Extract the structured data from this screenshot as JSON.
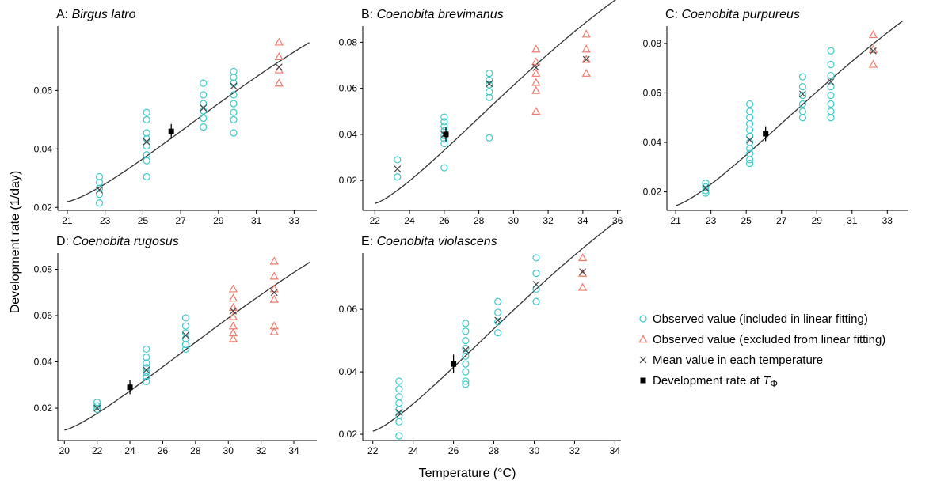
{
  "figure": {
    "ylabel": "Development rate (1/day)",
    "xlabel": "Temperature (°C)"
  },
  "legend": {
    "items": [
      {
        "label": "Observed value (included in linear fitting)",
        "marker": "circle-open",
        "color": "#3ec9c9"
      },
      {
        "label": "Observed value (excluded from linear fitting)",
        "marker": "triangle-open",
        "color": "#f07a6a"
      },
      {
        "label": "Mean value in each temperature",
        "marker": "cross",
        "color": "#444444"
      },
      {
        "label": "Development rate at ",
        "label_sym": "T",
        "label_sub": "Φ",
        "marker": "square",
        "color": "#000000"
      }
    ]
  },
  "colors": {
    "included": "#3ec9c9",
    "excluded": "#f07a6a",
    "mean": "#444444",
    "curve": "#333333",
    "trate": "#000000"
  },
  "chart_data": [
    {
      "type": "scatter",
      "panel_letter": "A: ",
      "title": "Birgus latro",
      "xlim": [
        20.5,
        34.2
      ],
      "ylim": [
        0.019,
        0.082
      ],
      "xticks": [
        21,
        23,
        25,
        27,
        29,
        31,
        33
      ],
      "yticks": [
        0.02,
        0.04,
        0.06
      ],
      "included": [
        [
          22.7,
          0.0305
        ],
        [
          22.7,
          0.0285
        ],
        [
          22.7,
          0.0265
        ],
        [
          22.7,
          0.0245
        ],
        [
          22.7,
          0.0215
        ],
        [
          25.2,
          0.0525
        ],
        [
          25.2,
          0.05
        ],
        [
          25.2,
          0.0455
        ],
        [
          25.2,
          0.0435
        ],
        [
          25.2,
          0.041
        ],
        [
          25.2,
          0.038
        ],
        [
          25.2,
          0.036
        ],
        [
          25.2,
          0.0305
        ],
        [
          28.2,
          0.0625
        ],
        [
          28.2,
          0.0585
        ],
        [
          28.2,
          0.0555
        ],
        [
          28.2,
          0.053
        ],
        [
          28.2,
          0.0505
        ],
        [
          28.2,
          0.0475
        ],
        [
          29.8,
          0.0665
        ],
        [
          29.8,
          0.0645
        ],
        [
          29.8,
          0.0625
        ],
        [
          29.8,
          0.0585
        ],
        [
          29.8,
          0.0555
        ],
        [
          29.8,
          0.0525
        ],
        [
          29.8,
          0.05
        ],
        [
          29.8,
          0.0455
        ]
      ],
      "excluded": [
        [
          32.2,
          0.0765
        ],
        [
          32.2,
          0.0715
        ],
        [
          32.2,
          0.067
        ],
        [
          32.2,
          0.0625
        ]
      ],
      "means": [
        [
          22.7,
          0.026
        ],
        [
          25.2,
          0.0425
        ],
        [
          28.2,
          0.054
        ],
        [
          29.8,
          0.0615
        ],
        [
          32.2,
          0.068
        ]
      ],
      "trate": {
        "x": 26.5,
        "y": 0.046,
        "err": 0.0025
      },
      "curve": {
        "T1": 21.0,
        "T2": 32.0,
        "r1": 0.022,
        "r2": 0.069,
        "a": 0.35,
        "xmin": 21.0,
        "xmax": 33.8
      }
    },
    {
      "type": "scatter",
      "panel_letter": "B: ",
      "title": "Coenobita brevimanus",
      "xlim": [
        21.3,
        36.2
      ],
      "ylim": [
        0.007,
        0.087
      ],
      "xticks": [
        22,
        24,
        26,
        28,
        30,
        32,
        34,
        36
      ],
      "yticks": [
        0.02,
        0.04,
        0.06,
        0.08
      ],
      "included": [
        [
          23.3,
          0.029
        ],
        [
          23.3,
          0.0215
        ],
        [
          26.0,
          0.0475
        ],
        [
          26.0,
          0.0455
        ],
        [
          26.0,
          0.0435
        ],
        [
          26.0,
          0.0415
        ],
        [
          26.0,
          0.0395
        ],
        [
          26.0,
          0.038
        ],
        [
          26.0,
          0.036
        ],
        [
          26.0,
          0.0255
        ],
        [
          28.6,
          0.0665
        ],
        [
          28.6,
          0.0635
        ],
        [
          28.6,
          0.0615
        ],
        [
          28.6,
          0.0585
        ],
        [
          28.6,
          0.056
        ],
        [
          28.6,
          0.0385
        ]
      ],
      "excluded": [
        [
          31.3,
          0.077
        ],
        [
          31.3,
          0.0715
        ],
        [
          31.3,
          0.0665
        ],
        [
          31.3,
          0.0625
        ],
        [
          31.3,
          0.059
        ],
        [
          31.3,
          0.05
        ],
        [
          34.2,
          0.0835
        ],
        [
          34.2,
          0.077
        ],
        [
          34.2,
          0.0725
        ],
        [
          34.2,
          0.0665
        ]
      ],
      "means": [
        [
          23.3,
          0.025
        ],
        [
          26.0,
          0.04
        ],
        [
          28.6,
          0.062
        ],
        [
          31.3,
          0.069
        ],
        [
          34.2,
          0.0725
        ]
      ],
      "trate": {
        "x": 26.1,
        "y": 0.04,
        "err": 0.003
      },
      "curve": {
        "T1": 22.0,
        "T2": 32.4,
        "r1": 0.01,
        "r2": 0.0775,
        "a": 0.3,
        "xmin": 22.0,
        "xmax": 35.9
      }
    },
    {
      "type": "scatter",
      "panel_letter": "C: ",
      "title": "Coenobita purpureus",
      "xlim": [
        20.5,
        34.2
      ],
      "ylim": [
        0.0125,
        0.087
      ],
      "xticks": [
        21,
        23,
        25,
        27,
        29,
        31,
        33
      ],
      "yticks": [
        0.02,
        0.04,
        0.06,
        0.08
      ],
      "included": [
        [
          22.7,
          0.0235
        ],
        [
          22.7,
          0.022
        ],
        [
          22.7,
          0.0205
        ],
        [
          22.7,
          0.0195
        ],
        [
          25.2,
          0.0555
        ],
        [
          25.2,
          0.0525
        ],
        [
          25.2,
          0.05
        ],
        [
          25.2,
          0.0475
        ],
        [
          25.2,
          0.045
        ],
        [
          25.2,
          0.0425
        ],
        [
          25.2,
          0.04
        ],
        [
          25.2,
          0.0375
        ],
        [
          25.2,
          0.0355
        ],
        [
          25.2,
          0.033
        ],
        [
          25.2,
          0.0315
        ],
        [
          28.2,
          0.0665
        ],
        [
          28.2,
          0.0625
        ],
        [
          28.2,
          0.059
        ],
        [
          28.2,
          0.0555
        ],
        [
          28.2,
          0.0525
        ],
        [
          28.2,
          0.05
        ],
        [
          29.8,
          0.077
        ],
        [
          29.8,
          0.0715
        ],
        [
          29.8,
          0.067
        ],
        [
          29.8,
          0.0625
        ],
        [
          29.8,
          0.059
        ],
        [
          29.8,
          0.0555
        ],
        [
          29.8,
          0.0525
        ],
        [
          29.8,
          0.05
        ]
      ],
      "excluded": [
        [
          32.2,
          0.0835
        ],
        [
          32.2,
          0.0775
        ],
        [
          32.2,
          0.0715
        ]
      ],
      "means": [
        [
          22.7,
          0.0215
        ],
        [
          25.2,
          0.041
        ],
        [
          28.2,
          0.0595
        ],
        [
          29.8,
          0.0645
        ],
        [
          32.2,
          0.077
        ]
      ],
      "trate": {
        "x": 26.1,
        "y": 0.0435,
        "err": 0.003
      },
      "curve": {
        "T1": 21.0,
        "T2": 31.8,
        "r1": 0.0145,
        "r2": 0.0775,
        "a": 0.32,
        "xmin": 21.0,
        "xmax": 33.9
      }
    },
    {
      "type": "scatter",
      "panel_letter": "D: ",
      "title": "Coenobita rugosus",
      "xlim": [
        19.6,
        35.4
      ],
      "ylim": [
        0.006,
        0.087
      ],
      "xticks": [
        20,
        22,
        24,
        26,
        28,
        30,
        32,
        34
      ],
      "yticks": [
        0.02,
        0.04,
        0.06,
        0.08
      ],
      "included": [
        [
          22.0,
          0.0225
        ],
        [
          22.0,
          0.021
        ],
        [
          22.0,
          0.0195
        ],
        [
          25.0,
          0.0455
        ],
        [
          25.0,
          0.042
        ],
        [
          25.0,
          0.0395
        ],
        [
          25.0,
          0.0375
        ],
        [
          25.0,
          0.0355
        ],
        [
          25.0,
          0.0335
        ],
        [
          25.0,
          0.0315
        ],
        [
          27.4,
          0.059
        ],
        [
          27.4,
          0.0555
        ],
        [
          27.4,
          0.0525
        ],
        [
          27.4,
          0.05
        ],
        [
          27.4,
          0.0475
        ],
        [
          27.4,
          0.0455
        ]
      ],
      "excluded": [
        [
          30.3,
          0.0715
        ],
        [
          30.3,
          0.0675
        ],
        [
          30.3,
          0.0635
        ],
        [
          30.3,
          0.0595
        ],
        [
          30.3,
          0.0555
        ],
        [
          30.3,
          0.0525
        ],
        [
          30.3,
          0.05
        ],
        [
          32.8,
          0.0835
        ],
        [
          32.8,
          0.077
        ],
        [
          32.8,
          0.0715
        ],
        [
          32.8,
          0.067
        ],
        [
          32.8,
          0.0555
        ],
        [
          32.8,
          0.053
        ]
      ],
      "means": [
        [
          22.0,
          0.02
        ],
        [
          25.0,
          0.0365
        ],
        [
          27.4,
          0.0515
        ],
        [
          30.3,
          0.062
        ],
        [
          32.8,
          0.07
        ]
      ],
      "trate": {
        "x": 24.0,
        "y": 0.029,
        "err": 0.003
      },
      "curve": {
        "T1": 20.0,
        "T2": 32.4,
        "r1": 0.0105,
        "r2": 0.071,
        "a": 0.28,
        "xmin": 20.0,
        "xmax": 35.0
      }
    },
    {
      "type": "scatter",
      "panel_letter": "E: ",
      "title": "Coenobita violascens",
      "xlim": [
        21.5,
        34.3
      ],
      "ylim": [
        0.018,
        0.078
      ],
      "xticks": [
        22,
        24,
        26,
        28,
        30,
        32,
        34
      ],
      "yticks": [
        0.02,
        0.04,
        0.06
      ],
      "included": [
        [
          23.3,
          0.037
        ],
        [
          23.3,
          0.0345
        ],
        [
          23.3,
          0.032
        ],
        [
          23.3,
          0.03
        ],
        [
          23.3,
          0.028
        ],
        [
          23.3,
          0.026
        ],
        [
          23.3,
          0.024
        ],
        [
          23.3,
          0.0195
        ],
        [
          26.6,
          0.0555
        ],
        [
          26.6,
          0.053
        ],
        [
          26.6,
          0.05
        ],
        [
          26.6,
          0.0475
        ],
        [
          26.6,
          0.045
        ],
        [
          26.6,
          0.0425
        ],
        [
          26.6,
          0.04
        ],
        [
          26.6,
          0.037
        ],
        [
          26.6,
          0.036
        ],
        [
          28.2,
          0.0625
        ],
        [
          28.2,
          0.059
        ],
        [
          28.2,
          0.056
        ],
        [
          28.2,
          0.0525
        ],
        [
          30.1,
          0.0765
        ],
        [
          30.1,
          0.0715
        ],
        [
          30.1,
          0.0665
        ],
        [
          30.1,
          0.0625
        ]
      ],
      "excluded": [
        [
          32.4,
          0.0765
        ],
        [
          32.4,
          0.0715
        ],
        [
          32.4,
          0.067
        ]
      ],
      "means": [
        [
          23.3,
          0.027
        ],
        [
          26.6,
          0.047
        ],
        [
          28.2,
          0.0565
        ],
        [
          30.1,
          0.068
        ],
        [
          32.4,
          0.072
        ]
      ],
      "trate": {
        "x": 26.0,
        "y": 0.0425,
        "err": 0.003
      },
      "curve": {
        "T1": 22.0,
        "T2": 31.4,
        "r1": 0.021,
        "r2": 0.074,
        "a": 0.3,
        "xmin": 22.0,
        "xmax": 34.0
      }
    }
  ]
}
